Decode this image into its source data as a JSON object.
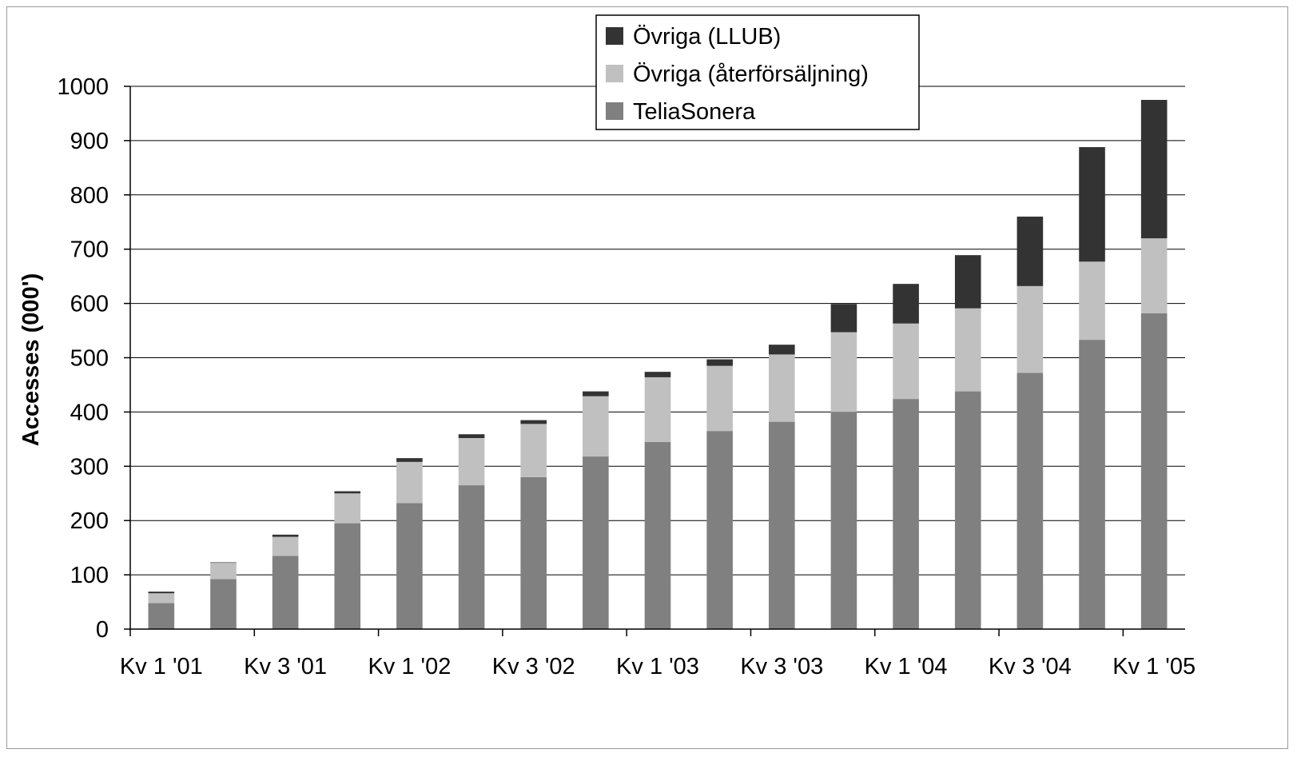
{
  "chart_data": {
    "type": "bar",
    "stacked": true,
    "title": "",
    "xlabel": "",
    "ylabel": "Accesses (000')",
    "ylim": [
      0,
      1000
    ],
    "yticks": [
      0,
      100,
      200,
      300,
      400,
      500,
      600,
      700,
      800,
      900,
      1000
    ],
    "grid": true,
    "legend_position": "top-center",
    "categories": [
      "Kv 1 '01",
      "Kv 2 '01",
      "Kv 3 '01",
      "Kv 4 '01",
      "Kv 1 '02",
      "Kv 2 '02",
      "Kv 3 '02",
      "Kv 4 '02",
      "Kv 1 '03",
      "Kv 2 '03",
      "Kv 3 '03",
      "Kv 4 '03",
      "Kv 1 '04",
      "Kv 2 '04",
      "Kv 3 '04",
      "Kv 4 '04",
      "Kv 1 '05"
    ],
    "xtick_labels": [
      "Kv 1 '01",
      "Kv 3 '01",
      "Kv 1 '02",
      "Kv 3 '02",
      "Kv 1 '03",
      "Kv 3 '03",
      "Kv 1 '04",
      "Kv 3 '04",
      "Kv 1 '05"
    ],
    "series": [
      {
        "name": "TeliaSonera",
        "color": "#808080",
        "values": [
          48,
          92,
          135,
          195,
          232,
          265,
          280,
          318,
          345,
          365,
          382,
          400,
          424,
          438,
          472,
          533,
          582
        ]
      },
      {
        "name": "Övriga (återförsäljning)",
        "color": "#c0c0c0",
        "values": [
          18,
          30,
          35,
          55,
          76,
          87,
          98,
          111,
          119,
          120,
          124,
          147,
          139,
          153,
          160,
          144,
          138
        ]
      },
      {
        "name": "Övriga (LLUB)",
        "color": "#333333",
        "values": [
          3,
          1,
          4,
          4,
          7,
          7,
          7,
          9,
          10,
          12,
          18,
          52,
          73,
          98,
          128,
          211,
          255
        ]
      }
    ]
  }
}
